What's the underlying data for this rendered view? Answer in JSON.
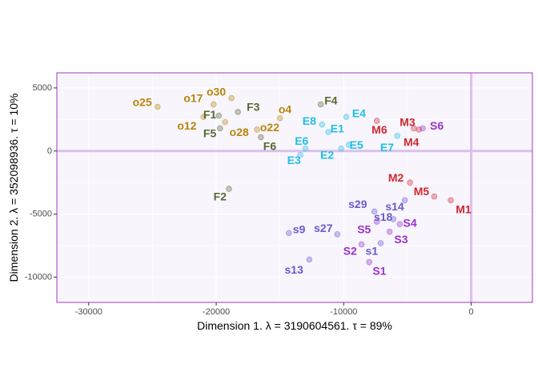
{
  "chart_data": {
    "type": "scatter",
    "title": "",
    "xlabel": "Dimension 1.   λ = 3190604561.   τ = 89%",
    "ylabel": "Dimension 2.   λ = 352098936.   τ = 10%",
    "xlim": [
      -32500,
      4800
    ],
    "ylim": [
      -12000,
      6200
    ],
    "x_ticks": [
      -30000,
      -20000,
      -10000,
      0
    ],
    "x_tick_labels": [
      "-30000",
      "-20000",
      "-10000",
      "0"
    ],
    "y_ticks": [
      -10000,
      -5000,
      0,
      5000
    ],
    "y_tick_labels": [
      "-10000",
      "-5000",
      "0",
      "5000"
    ],
    "grid": true,
    "legend": "none",
    "reference_lines": {
      "x": 0,
      "y": 0
    },
    "colors": {
      "panel_background": "#f8f5fd",
      "panel_border": "#a03ab8",
      "reference_line": "#dcc0ec",
      "o": "#b8860b",
      "F": "#556b2f",
      "E": "#1fbfe6",
      "M": "#d0282f",
      "S": "#9932cc",
      "s": "#6a5acd"
    },
    "points": [
      {
        "label": "o25",
        "group": "o",
        "x": -24600,
        "y": 3500,
        "lx": -25800,
        "ly": 3900
      },
      {
        "label": "o17",
        "group": "o",
        "x": -20200,
        "y": 3700,
        "lx": -21800,
        "ly": 4200
      },
      {
        "label": "o30",
        "group": "o",
        "x": -18800,
        "y": 4200,
        "lx": -20000,
        "ly": 4700
      },
      {
        "label": "o12",
        "group": "o",
        "x": -21000,
        "y": 2700,
        "lx": -22300,
        "ly": 2000
      },
      {
        "label": "o28",
        "group": "o",
        "x": -19300,
        "y": 2300,
        "lx": -18200,
        "ly": 1500
      },
      {
        "label": "o22",
        "group": "o",
        "x": -16800,
        "y": 1700,
        "lx": -15800,
        "ly": 1900
      },
      {
        "label": "o4",
        "group": "o",
        "x": -15000,
        "y": 2600,
        "lx": -14600,
        "ly": 3300
      },
      {
        "label": "F1",
        "group": "F",
        "x": -19800,
        "y": 2800,
        "lx": -20500,
        "ly": 2900
      },
      {
        "label": "F3",
        "group": "F",
        "x": -18300,
        "y": 3100,
        "lx": -17100,
        "ly": 3500
      },
      {
        "label": "F5",
        "group": "F",
        "x": -19700,
        "y": 1800,
        "lx": -20500,
        "ly": 1400
      },
      {
        "label": "F6",
        "group": "F",
        "x": -16500,
        "y": 1100,
        "lx": -15800,
        "ly": 400
      },
      {
        "label": "F4",
        "group": "F",
        "x": -11800,
        "y": 3700,
        "lx": -11000,
        "ly": 4000
      },
      {
        "label": "F2",
        "group": "F",
        "x": -19000,
        "y": -3000,
        "lx": -19700,
        "ly": -3600
      },
      {
        "label": "E8",
        "group": "E",
        "x": -11700,
        "y": 2100,
        "lx": -12700,
        "ly": 2400
      },
      {
        "label": "E1",
        "group": "E",
        "x": -11200,
        "y": 1500,
        "lx": -10500,
        "ly": 1800
      },
      {
        "label": "E4",
        "group": "E",
        "x": -9800,
        "y": 2700,
        "lx": -8800,
        "ly": 3000
      },
      {
        "label": "E6",
        "group": "E",
        "x": -13000,
        "y": 200,
        "lx": -13300,
        "ly": 800
      },
      {
        "label": "E2",
        "group": "E",
        "x": -10200,
        "y": 200,
        "lx": -11300,
        "ly": -300
      },
      {
        "label": "E5",
        "group": "E",
        "x": -9600,
        "y": 500,
        "lx": -9000,
        "ly": 500
      },
      {
        "label": "E3",
        "group": "E",
        "x": -13400,
        "y": -300,
        "lx": -13900,
        "ly": -700
      },
      {
        "label": "E7",
        "group": "E",
        "x": -5800,
        "y": 1200,
        "lx": -6600,
        "ly": 300
      },
      {
        "label": "M6",
        "group": "M",
        "x": -7400,
        "y": 2400,
        "lx": -7200,
        "ly": 1700
      },
      {
        "label": "M3",
        "group": "M",
        "x": -4500,
        "y": 1800,
        "lx": -5000,
        "ly": 2300
      },
      {
        "label": "M4",
        "group": "M",
        "x": -4100,
        "y": 1700,
        "lx": -4700,
        "ly": 700
      },
      {
        "label": "M2",
        "group": "M",
        "x": -4800,
        "y": -2500,
        "lx": -5900,
        "ly": -2100
      },
      {
        "label": "M5",
        "group": "M",
        "x": -2900,
        "y": -3600,
        "lx": -3900,
        "ly": -3200
      },
      {
        "label": "M1",
        "group": "M",
        "x": -1600,
        "y": -3900,
        "lx": -600,
        "ly": -4600
      },
      {
        "label": "S6",
        "group": "S",
        "x": -3800,
        "y": 1800,
        "lx": -2700,
        "ly": 2000
      },
      {
        "label": "S4",
        "group": "S",
        "x": -5600,
        "y": -5800,
        "lx": -4800,
        "ly": -5700
      },
      {
        "label": "S3",
        "group": "S",
        "x": -6400,
        "y": -6400,
        "lx": -5500,
        "ly": -7000
      },
      {
        "label": "S5",
        "group": "S",
        "x": -7400,
        "y": -5600,
        "lx": -8400,
        "ly": -6200
      },
      {
        "label": "S2",
        "group": "S",
        "x": -8600,
        "y": -7400,
        "lx": -9500,
        "ly": -7900
      },
      {
        "label": "S1",
        "group": "S",
        "x": -8000,
        "y": -8800,
        "lx": -7200,
        "ly": -9500
      },
      {
        "label": "s29",
        "group": "s",
        "x": -7600,
        "y": -4800,
        "lx": -8900,
        "ly": -4200
      },
      {
        "label": "s14",
        "group": "s",
        "x": -5200,
        "y": -3900,
        "lx": -6000,
        "ly": -4400
      },
      {
        "label": "s18",
        "group": "s",
        "x": -6100,
        "y": -5400,
        "lx": -6900,
        "ly": -5200
      },
      {
        "label": "s9",
        "group": "s",
        "x": -14300,
        "y": -6500,
        "lx": -13500,
        "ly": -6200
      },
      {
        "label": "s27",
        "group": "s",
        "x": -10500,
        "y": -6600,
        "lx": -11600,
        "ly": -6100
      },
      {
        "label": "s1",
        "group": "s",
        "x": -7100,
        "y": -7300,
        "lx": -7800,
        "ly": -7900
      },
      {
        "label": "s13",
        "group": "s",
        "x": -12700,
        "y": -8600,
        "lx": -13900,
        "ly": -9400
      }
    ]
  }
}
